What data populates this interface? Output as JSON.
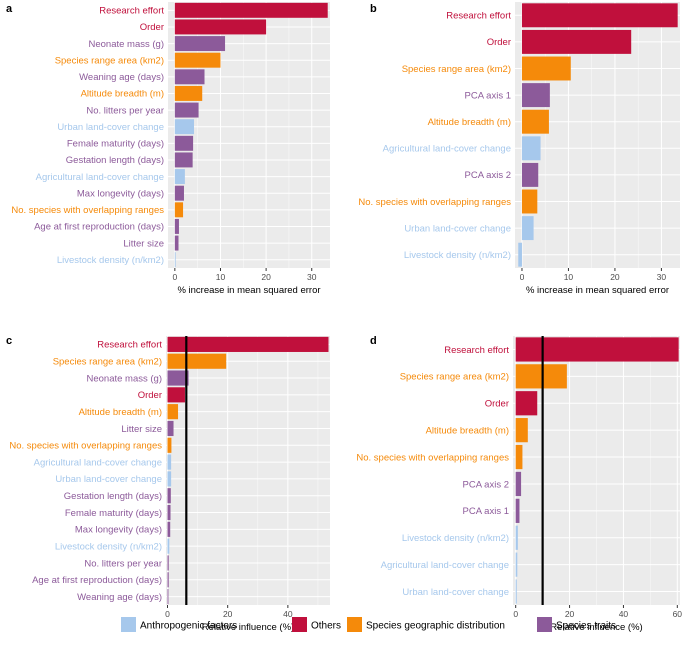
{
  "colors": {
    "Anthropogenic factors": "#a6c8ec",
    "Others": "#c0103c",
    "Species geographic distribution": "#f58a0a",
    "Species traits": "#8c5a9a",
    "panel_bg": "#ebebeb",
    "grid": "#ffffff"
  },
  "legend": [
    "Anthropogenic factors",
    "Others",
    "Species geographic distribution",
    "Species traits"
  ],
  "chart_data": [
    {
      "panel": "a",
      "type": "bar",
      "orientation": "horizontal",
      "xlabel": "% increase in mean squared error",
      "xlim": [
        -1.5,
        34
      ],
      "xticks": [
        0,
        10,
        20,
        30
      ],
      "categories": [
        "Research effort",
        "Order",
        "Neonate mass (g)",
        "Species range area (km2)",
        "Weaning age (days)",
        "Altitude breadth (m)",
        "No. litters per year",
        "Urban land-cover change",
        "Female maturity (days)",
        "Gestation length (days)",
        "Agricultural land-cover change",
        "Max longevity (days)",
        "No. species with overlapping ranges",
        "Age at first reproduction (days)",
        "Litter size",
        "Livestock density (n/km2)"
      ],
      "groups": [
        "Others",
        "Others",
        "Species traits",
        "Species geographic distribution",
        "Species traits",
        "Species geographic distribution",
        "Species traits",
        "Anthropogenic factors",
        "Species traits",
        "Species traits",
        "Anthropogenic factors",
        "Species traits",
        "Species geographic distribution",
        "Species traits",
        "Species traits",
        "Anthropogenic factors"
      ],
      "values": [
        33.5,
        20,
        11,
        10,
        6.5,
        6,
        5.2,
        4.2,
        4,
        3.9,
        2.2,
        2,
        1.8,
        0.9,
        0.8,
        0.1
      ],
      "ref_line": null
    },
    {
      "panel": "b",
      "type": "bar",
      "orientation": "horizontal",
      "xlabel": "% increase in mean squared error",
      "xlim": [
        -1.5,
        34
      ],
      "xticks": [
        0,
        10,
        20,
        30
      ],
      "categories": [
        "Research effort",
        "Order",
        "Species range area (km2)",
        "PCA axis 1",
        "Altitude breadth (m)",
        "Agricultural land-cover change",
        "PCA axis 2",
        "No. species with overlapping ranges",
        "Urban land-cover change",
        "Livestock density (n/km2)"
      ],
      "groups": [
        "Others",
        "Others",
        "Species geographic distribution",
        "Species traits",
        "Species geographic distribution",
        "Anthropogenic factors",
        "Species traits",
        "Species geographic distribution",
        "Anthropogenic factors",
        "Anthropogenic factors"
      ],
      "values": [
        33.5,
        23.5,
        10.5,
        6,
        5.8,
        4,
        3.5,
        3.3,
        2.5,
        -0.8
      ],
      "ref_line": null
    },
    {
      "panel": "c",
      "type": "bar",
      "orientation": "horizontal",
      "xlabel": "Relative influence (%)",
      "xlim": [
        -0.5,
        54
      ],
      "xticks": [
        0,
        20,
        40
      ],
      "categories": [
        "Research effort",
        "Species range area (km2)",
        "Neonate mass (g)",
        "Order",
        "Altitude breadth (m)",
        "Litter size",
        "No. species with overlapping ranges",
        "Agricultural land-cover change",
        "Urban land-cover change",
        "Gestation length (days)",
        "Female maturity (days)",
        "Max longevity (days)",
        "Livestock density (n/km2)",
        "No. litters per year",
        "Age at first reproduction (days)",
        "Weaning age (days)"
      ],
      "groups": [
        "Others",
        "Species geographic distribution",
        "Species traits",
        "Others",
        "Species geographic distribution",
        "Species traits",
        "Species geographic distribution",
        "Anthropogenic factors",
        "Anthropogenic factors",
        "Species traits",
        "Species traits",
        "Species traits",
        "Anthropogenic factors",
        "Species traits",
        "Species traits",
        "Species traits"
      ],
      "values": [
        53.5,
        19.5,
        7,
        5.8,
        3.5,
        2,
        1.3,
        1.2,
        1.2,
        1.1,
        1,
        0.9,
        0.6,
        0.4,
        0.4,
        0.3
      ],
      "ref_line": 6.25
    },
    {
      "panel": "d",
      "type": "bar",
      "orientation": "horizontal",
      "xlabel": "Relative influence (%)",
      "xlim": [
        -1,
        61
      ],
      "xticks": [
        0,
        20,
        40,
        60
      ],
      "categories": [
        "Research effort",
        "Species range area (km2)",
        "Order",
        "Altitude breadth (m)",
        "No. species with overlapping ranges",
        "PCA axis 2",
        "PCA axis 1",
        "Livestock density (n/km2)",
        "Agricultural land-cover change",
        "Urban land-cover change"
      ],
      "groups": [
        "Others",
        "Species geographic distribution",
        "Others",
        "Species geographic distribution",
        "Species geographic distribution",
        "Species traits",
        "Species traits",
        "Anthropogenic factors",
        "Anthropogenic factors",
        "Anthropogenic factors"
      ],
      "values": [
        60.5,
        19,
        8,
        4.5,
        2.5,
        2,
        1.4,
        0.8,
        0.6,
        0.4
      ],
      "ref_line": 10
    }
  ]
}
